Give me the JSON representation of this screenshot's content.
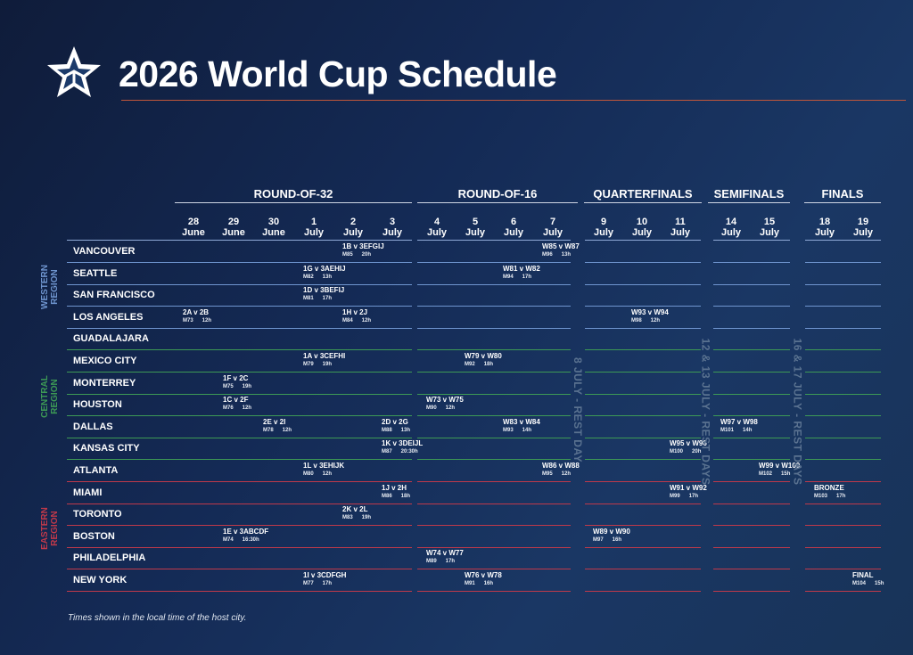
{
  "title": "2026 World Cup Schedule",
  "rounds": [
    {
      "label": "ROUND-OF-32"
    },
    {
      "label": "ROUND-OF-16"
    },
    {
      "label": "QUARTERFINALS"
    },
    {
      "label": "SEMIFINALS"
    },
    {
      "label": "FINALS"
    }
  ],
  "dates": [
    {
      "day": "28",
      "month": "June"
    },
    {
      "day": "29",
      "month": "June"
    },
    {
      "day": "30",
      "month": "June"
    },
    {
      "day": "1",
      "month": "July"
    },
    {
      "day": "2",
      "month": "July"
    },
    {
      "day": "3",
      "month": "July"
    },
    {
      "day": "4",
      "month": "July"
    },
    {
      "day": "5",
      "month": "July"
    },
    {
      "day": "6",
      "month": "July"
    },
    {
      "day": "7",
      "month": "July"
    },
    {
      "day": "9",
      "month": "July"
    },
    {
      "day": "10",
      "month": "July"
    },
    {
      "day": "11",
      "month": "July"
    },
    {
      "day": "14",
      "month": "July"
    },
    {
      "day": "15",
      "month": "July"
    },
    {
      "day": "18",
      "month": "July"
    },
    {
      "day": "19",
      "month": "July"
    }
  ],
  "regions": [
    {
      "label": "WESTERN\nREGION",
      "color": "#6f95cf"
    },
    {
      "label": "CENTRAL\nREGION",
      "color": "#3d9a55"
    },
    {
      "label": "EASTERN\nREGION",
      "color": "#c0394a"
    }
  ],
  "cities": [
    {
      "name": "VANCOUVER",
      "region": 0
    },
    {
      "name": "SEATTLE",
      "region": 0
    },
    {
      "name": "SAN FRANCISCO",
      "region": 0
    },
    {
      "name": "LOS ANGELES",
      "region": 0
    },
    {
      "name": "GUADALAJARA",
      "region": 1
    },
    {
      "name": "MEXICO CITY",
      "region": 1
    },
    {
      "name": "MONTERREY",
      "region": 1
    },
    {
      "name": "HOUSTON",
      "region": 1
    },
    {
      "name": "DALLAS",
      "region": 1
    },
    {
      "name": "KANSAS CITY",
      "region": 1
    },
    {
      "name": "ATLANTA",
      "region": 2
    },
    {
      "name": "MIAMI",
      "region": 2
    },
    {
      "name": "TORONTO",
      "region": 2
    },
    {
      "name": "BOSTON",
      "region": 2
    },
    {
      "name": "PHILADELPHIA",
      "region": 2
    },
    {
      "name": "NEW YORK",
      "region": 2
    }
  ],
  "matches": [
    {
      "city": 0,
      "date": 4,
      "label": "1B v 3EFGIJ",
      "id": "M85",
      "time": "20h"
    },
    {
      "city": 0,
      "date": 9,
      "label": "W85 v W87",
      "id": "M96",
      "time": "13h"
    },
    {
      "city": 1,
      "date": 3,
      "label": "1G v 3AEHIJ",
      "id": "M82",
      "time": "13h"
    },
    {
      "city": 1,
      "date": 8,
      "label": "W81 v W82",
      "id": "M94",
      "time": "17h"
    },
    {
      "city": 2,
      "date": 3,
      "label": "1D v 3BEFIJ",
      "id": "M81",
      "time": "17h"
    },
    {
      "city": 3,
      "date": 0,
      "label": "2A v 2B",
      "id": "M73",
      "time": "12h"
    },
    {
      "city": 3,
      "date": 4,
      "label": "1H v 2J",
      "id": "M84",
      "time": "12h"
    },
    {
      "city": 3,
      "date": 11,
      "label": "W93 v W94",
      "id": "M98",
      "time": "12h"
    },
    {
      "city": 5,
      "date": 3,
      "label": "1A v 3CEFHI",
      "id": "M79",
      "time": "19h"
    },
    {
      "city": 5,
      "date": 7,
      "label": "W79 v W80",
      "id": "M92",
      "time": "18h"
    },
    {
      "city": 6,
      "date": 1,
      "label": "1F v 2C",
      "id": "M75",
      "time": "19h"
    },
    {
      "city": 7,
      "date": 1,
      "label": "1C v 2F",
      "id": "M76",
      "time": "12h"
    },
    {
      "city": 7,
      "date": 6,
      "label": "W73 v W75",
      "id": "M90",
      "time": "12h"
    },
    {
      "city": 8,
      "date": 2,
      "label": "2E v 2I",
      "id": "M78",
      "time": "12h"
    },
    {
      "city": 8,
      "date": 5,
      "label": "2D v 2G",
      "id": "M88",
      "time": "13h"
    },
    {
      "city": 8,
      "date": 8,
      "label": "W83 v W84",
      "id": "M93",
      "time": "14h"
    },
    {
      "city": 8,
      "date": 13,
      "label": "W97 v W98",
      "id": "M101",
      "time": "14h"
    },
    {
      "city": 9,
      "date": 5,
      "label": "1K v 3DEIJL",
      "id": "M87",
      "time": "20:30h"
    },
    {
      "city": 9,
      "date": 12,
      "label": "W95 v W96",
      "id": "M100",
      "time": "20h"
    },
    {
      "city": 10,
      "date": 3,
      "label": "1L v 3EHIJK",
      "id": "M80",
      "time": "12h"
    },
    {
      "city": 10,
      "date": 9,
      "label": "W86 v W88",
      "id": "M95",
      "time": "12h"
    },
    {
      "city": 10,
      "date": 14,
      "label": "W99 v W100",
      "id": "M102",
      "time": "15h"
    },
    {
      "city": 11,
      "date": 5,
      "label": "1J v 2H",
      "id": "M86",
      "time": "18h"
    },
    {
      "city": 11,
      "date": 12,
      "label": "W91 v W92",
      "id": "M99",
      "time": "17h"
    },
    {
      "city": 11,
      "date": 15,
      "label": "BRONZE",
      "id": "M103",
      "time": "17h"
    },
    {
      "city": 12,
      "date": 4,
      "label": "2K v 2L",
      "id": "M83",
      "time": "19h"
    },
    {
      "city": 13,
      "date": 1,
      "label": "1E v 3ABCDF",
      "id": "M74",
      "time": "16:30h"
    },
    {
      "city": 13,
      "date": 10,
      "label": "W89 v W90",
      "id": "M97",
      "time": "16h"
    },
    {
      "city": 14,
      "date": 6,
      "label": "W74 v W77",
      "id": "M89",
      "time": "17h"
    },
    {
      "city": 15,
      "date": 3,
      "label": "1I v 3CDFGH",
      "id": "M77",
      "time": "17h"
    },
    {
      "city": 15,
      "date": 7,
      "label": "W76 v W78",
      "id": "M91",
      "time": "16h"
    },
    {
      "city": 15,
      "date": 16,
      "label": "FINAL",
      "id": "M104",
      "time": "15h"
    }
  ],
  "rest_days": [
    {
      "label": "8 JULY - REST DAY"
    },
    {
      "label": "12 & 13 JULY - REST DAYS"
    },
    {
      "label": "16 & 17 JULY - REST DAYS"
    }
  ],
  "footnote": "Times shown in the local time of the host city."
}
